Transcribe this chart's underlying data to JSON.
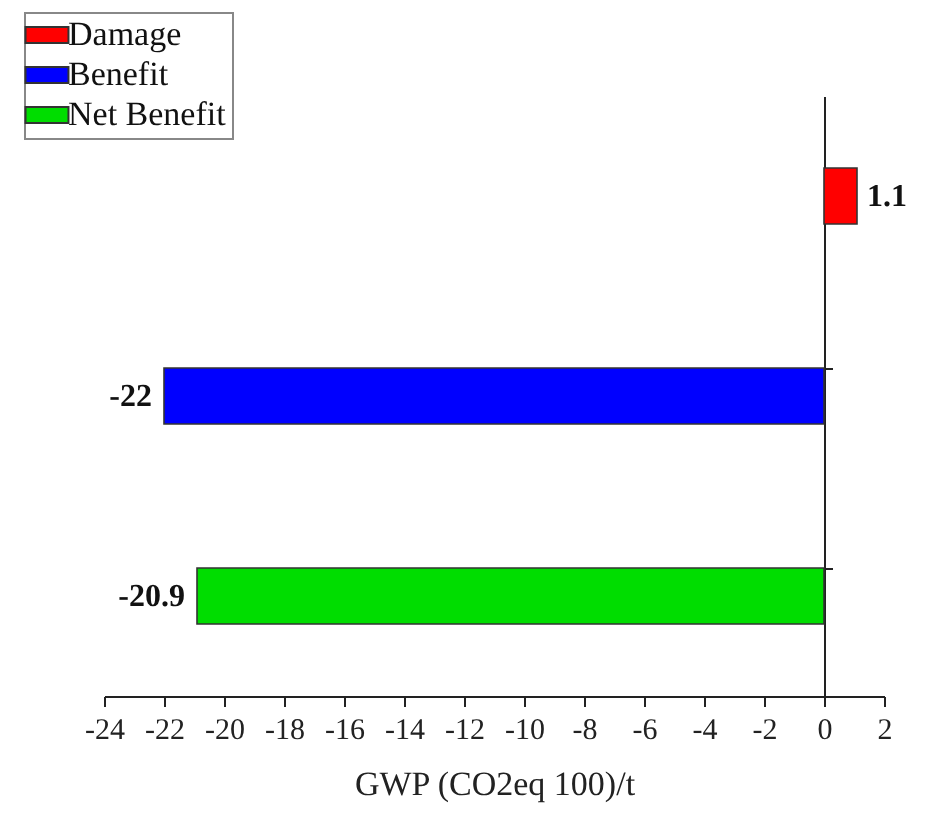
{
  "chart_data": {
    "type": "bar",
    "orientation": "horizontal",
    "categories": [
      null,
      null,
      null
    ],
    "series": [
      {
        "name": "Damage",
        "color": "#ff0000",
        "values": [
          1.1,
          null,
          null
        ]
      },
      {
        "name": "Benefit",
        "color": "#0000ff",
        "values": [
          null,
          -22,
          null
        ]
      },
      {
        "name": "Net Benefit",
        "color": "#00dd00",
        "values": [
          null,
          null,
          -20.9
        ]
      }
    ],
    "xlabel": "GWP (CO2eq 100)/t",
    "xlim": [
      -24,
      2
    ],
    "xticks": [
      -24,
      -22,
      -20,
      -18,
      -16,
      -14,
      -12,
      -10,
      -8,
      -6,
      -4,
      -2,
      0,
      2
    ],
    "data_labels": true,
    "legend": "top left",
    "tick_labels": "x"
  }
}
